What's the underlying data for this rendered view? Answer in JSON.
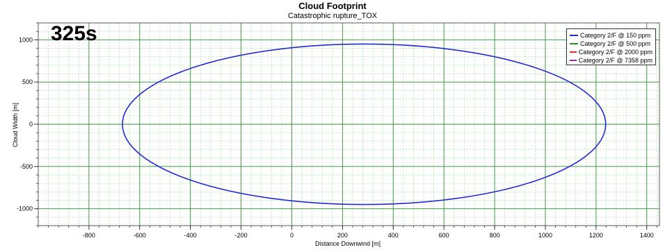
{
  "chart_data": {
    "type": "line",
    "title": "Cloud Footprint",
    "subtitle": "Catastrophic rupture_TOX",
    "annotation": "325s",
    "xlabel": "Distance Downwind [m]",
    "ylabel": "Cloud Width [m]",
    "xlim": [
      -1000,
      1450
    ],
    "ylim": [
      -1200,
      1200
    ],
    "xticks": [
      -800,
      -600,
      -400,
      -200,
      0,
      200,
      400,
      600,
      800,
      1000,
      1200,
      1400
    ],
    "yticks": [
      -1000,
      -500,
      0,
      500,
      1000
    ],
    "grid": true,
    "legend_position": "top-right",
    "series": [
      {
        "name": "Category 2/F @ 150 ppm",
        "color": "#2727d8",
        "shape": "ellipse",
        "center_x": 285,
        "center_y": 0,
        "x_min": -668,
        "x_max": 1238,
        "y_min": -950,
        "y_max": 950
      },
      {
        "name": "Category 2/F @ 500 ppm",
        "color": "#2a8c2a"
      },
      {
        "name": "Category 2/F @ 2000 ppm",
        "color": "#d82a2a"
      },
      {
        "name": "Category 2/F @ 7358 ppm",
        "color": "#9a2a9a"
      }
    ]
  }
}
